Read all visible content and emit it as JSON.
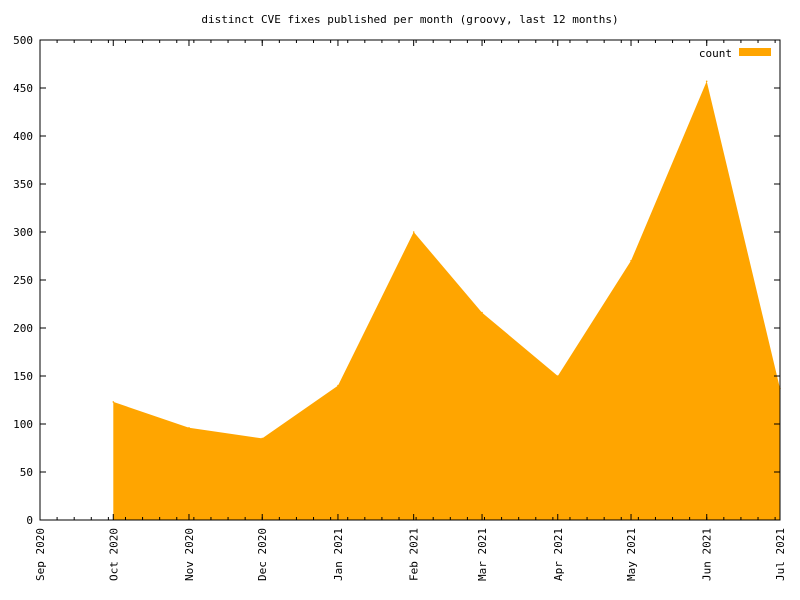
{
  "chart_data": {
    "type": "area",
    "title": "distinct CVE fixes published per month (groovy, last 12 months)",
    "xlabel": "",
    "ylabel": "",
    "ylim": [
      0,
      500
    ],
    "yticks": [
      0,
      50,
      100,
      150,
      200,
      250,
      300,
      350,
      400,
      450,
      500
    ],
    "x_ticks": [
      "Sep 2020",
      "Oct 2020",
      "Nov 2020",
      "Dec 2020",
      "Jan 2021",
      "Feb 2021",
      "Mar 2021",
      "Apr 2021",
      "May 2021",
      "Jun 2021",
      "Jul 2021"
    ],
    "xlim": [
      "2020-09-01",
      "2021-07-01"
    ],
    "grid": false,
    "legend_position": "top-right",
    "series": [
      {
        "name": "count",
        "color": "#ffa500",
        "x": [
          "2020-10-01",
          "2020-11-01",
          "2020-12-01",
          "2021-01-01",
          "2021-02-01",
          "2021-03-01",
          "2021-04-01",
          "2021-05-01",
          "2021-06-01",
          "2021-07-01"
        ],
        "values": [
          123,
          96,
          85,
          140,
          300,
          216,
          150,
          270,
          457,
          137
        ]
      }
    ]
  }
}
